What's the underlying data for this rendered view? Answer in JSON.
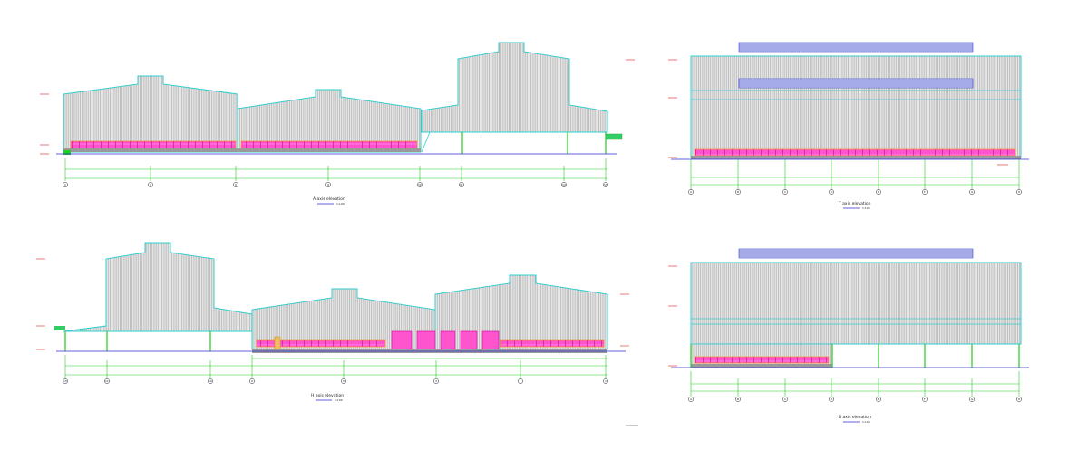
{
  "drawings": [
    {
      "id": "a",
      "title": "A axis elevation",
      "scale": "1:100",
      "axis_labels": [
        "1",
        "4",
        "5",
        "9",
        "10",
        "11",
        "14",
        "15"
      ]
    },
    {
      "id": "t",
      "title": "T axis elevation",
      "scale": "1:100",
      "axis_labels": [
        "A",
        "B",
        "C",
        "D",
        "E",
        "F",
        "G",
        "H"
      ]
    },
    {
      "id": "h",
      "title": "H axis elevation",
      "scale": "1:100",
      "axis_labels": [
        "15",
        "11",
        "10",
        "9",
        "5",
        "4",
        "1"
      ]
    },
    {
      "id": "b",
      "title": "B axis elevation",
      "scale": "1:100",
      "axis_labels": [
        "A",
        "B",
        "C",
        "D",
        "E",
        "F",
        "G",
        "H"
      ]
    }
  ],
  "colors": {
    "outline": "#33cccc",
    "hatch": "#9a9a9a",
    "fill": "#e4e4e4",
    "window": "#ff33cc",
    "window_frame": "#ff8800",
    "dim_line": "#22cc22",
    "ground": "#2b2bd6",
    "column": "#22cc22",
    "level": "#d22222",
    "skylight": "#3344cc"
  }
}
